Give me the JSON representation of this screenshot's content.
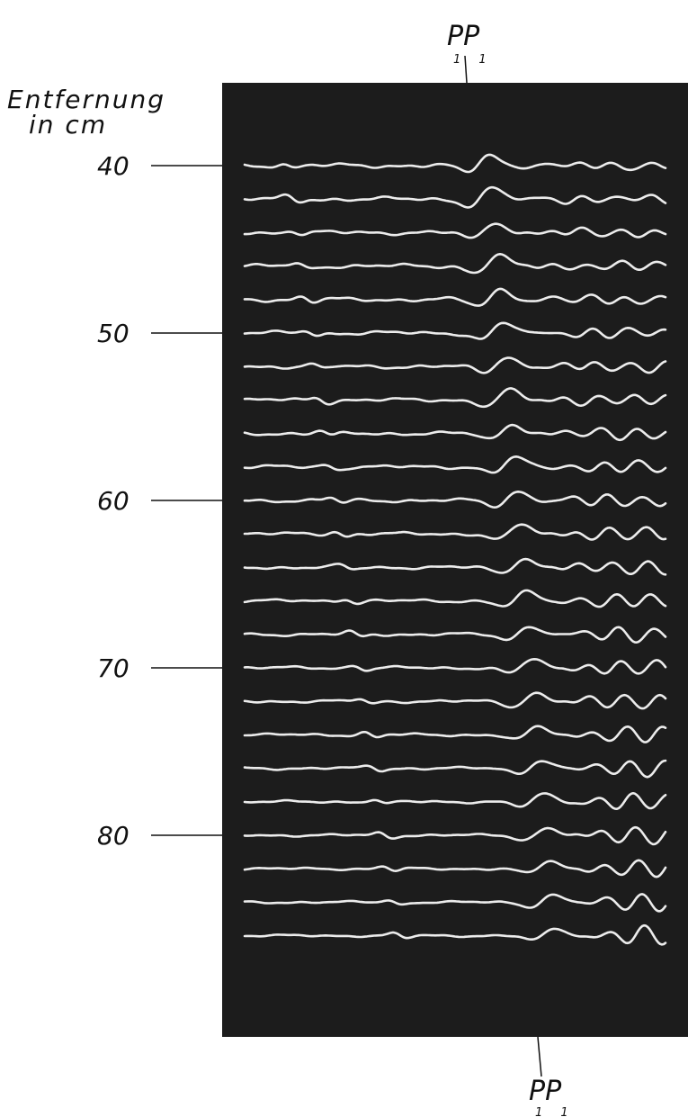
{
  "chart_data": {
    "type": "line",
    "ylabel_line1": "Entfernung",
    "ylabel_line2": "in cm",
    "y_tick_labels": [
      "40",
      "50",
      "60",
      "70",
      "80"
    ],
    "y_ticks": [
      40,
      50,
      60,
      70,
      80
    ],
    "distances_cm": [
      40,
      42,
      44,
      46,
      48,
      50,
      52,
      54,
      56,
      58,
      60,
      62,
      64,
      66,
      68,
      70,
      72,
      74,
      76,
      78,
      80,
      82,
      84,
      86
    ],
    "phase_marker": {
      "main": "PP",
      "subscript": "1 1"
    },
    "background_color": "#1c1c1c",
    "trace_color": "#ececec"
  }
}
